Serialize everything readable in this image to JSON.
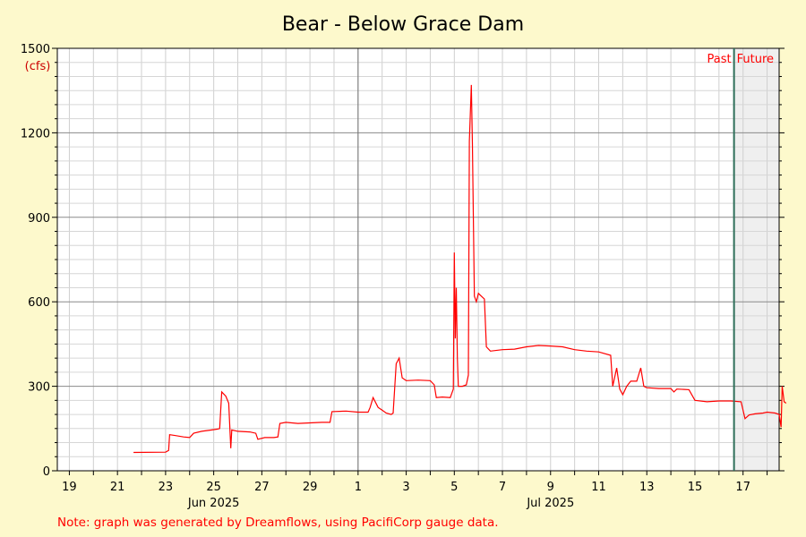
{
  "chart_data": {
    "type": "line",
    "title": "Bear - Below Grace Dam",
    "ylabel": "(cfs)",
    "ylim": [
      0,
      1500
    ],
    "xlim": [
      "2025-06-18T12:00",
      "2025-07-18T12:00"
    ],
    "yticks": [
      "0",
      "300",
      "600",
      "900",
      "1200",
      "1500"
    ],
    "xtick_labels": [
      {
        "date": "2025-06-19",
        "label": "19"
      },
      {
        "date": "2025-06-21",
        "label": "21"
      },
      {
        "date": "2025-06-23",
        "label": "23"
      },
      {
        "date": "2025-06-25",
        "label": "25"
      },
      {
        "date": "2025-06-27",
        "label": "27"
      },
      {
        "date": "2025-06-29",
        "label": "29"
      },
      {
        "date": "2025-07-01",
        "label": "1"
      },
      {
        "date": "2025-07-03",
        "label": "3"
      },
      {
        "date": "2025-07-05",
        "label": "5"
      },
      {
        "date": "2025-07-07",
        "label": "7"
      },
      {
        "date": "2025-07-09",
        "label": "9"
      },
      {
        "date": "2025-07-11",
        "label": "11"
      },
      {
        "date": "2025-07-13",
        "label": "13"
      },
      {
        "date": "2025-07-15",
        "label": "15"
      },
      {
        "date": "2025-07-17",
        "label": "17"
      }
    ],
    "month_labels": [
      {
        "date": "2025-06-25",
        "label": "Jun 2025"
      },
      {
        "date": "2025-07-09",
        "label": "Jul 2025"
      }
    ],
    "month_boundary": "2025-07-01",
    "now": "2025-07-16T15:00",
    "past_label": "Past",
    "future_label": "Future",
    "grid": true,
    "series": [
      {
        "color": "#ff0000",
        "points": [
          [
            "2025-06-21T16:00",
            65
          ],
          [
            "2025-06-23T00:00",
            66
          ],
          [
            "2025-06-23T03:00",
            72
          ],
          [
            "2025-06-23T04:00",
            128
          ],
          [
            "2025-06-23T10:00",
            125
          ],
          [
            "2025-06-23T18:00",
            120
          ],
          [
            "2025-06-24T00:00",
            118
          ],
          [
            "2025-06-24T04:00",
            133
          ],
          [
            "2025-06-24T12:00",
            140
          ],
          [
            "2025-06-24T22:00",
            145
          ],
          [
            "2025-06-25T04:00",
            148
          ],
          [
            "2025-06-25T06:00",
            150
          ],
          [
            "2025-06-25T08:00",
            280
          ],
          [
            "2025-06-25T12:00",
            265
          ],
          [
            "2025-06-25T15:00",
            240
          ],
          [
            "2025-06-25T17:00",
            80
          ],
          [
            "2025-06-25T18:00",
            145
          ],
          [
            "2025-06-26T00:00",
            140
          ],
          [
            "2025-06-26T12:00",
            138
          ],
          [
            "2025-06-26T18:00",
            133
          ],
          [
            "2025-06-26T20:00",
            112
          ],
          [
            "2025-06-27T03:00",
            118
          ],
          [
            "2025-06-27T12:00",
            118
          ],
          [
            "2025-06-27T16:00",
            120
          ],
          [
            "2025-06-27T18:00",
            168
          ],
          [
            "2025-06-28T00:00",
            172
          ],
          [
            "2025-06-28T12:00",
            168
          ],
          [
            "2025-06-29T00:00",
            170
          ],
          [
            "2025-06-29T12:00",
            172
          ],
          [
            "2025-06-29T20:00",
            172
          ],
          [
            "2025-06-29T22:00",
            210
          ],
          [
            "2025-06-30T12:00",
            212
          ],
          [
            "2025-07-01T00:00",
            208
          ],
          [
            "2025-07-01T10:00",
            208
          ],
          [
            "2025-07-01T12:00",
            225
          ],
          [
            "2025-07-01T15:00",
            260
          ],
          [
            "2025-07-01T20:00",
            225
          ],
          [
            "2025-07-02T00:00",
            215
          ],
          [
            "2025-07-02T04:00",
            205
          ],
          [
            "2025-07-02T09:00",
            200
          ],
          [
            "2025-07-02T11:00",
            205
          ],
          [
            "2025-07-02T14:00",
            380
          ],
          [
            "2025-07-02T17:00",
            400
          ],
          [
            "2025-07-02T20:00",
            330
          ],
          [
            "2025-07-03T00:00",
            320
          ],
          [
            "2025-07-03T12:00",
            322
          ],
          [
            "2025-07-04T00:00",
            320
          ],
          [
            "2025-07-04T04:00",
            305
          ],
          [
            "2025-07-04T06:00",
            260
          ],
          [
            "2025-07-04T12:00",
            262
          ],
          [
            "2025-07-04T20:00",
            260
          ],
          [
            "2025-07-04T23:00",
            290
          ],
          [
            "2025-07-05T00:00",
            775
          ],
          [
            "2025-07-05T01:00",
            470
          ],
          [
            "2025-07-05T02:00",
            650
          ],
          [
            "2025-07-05T03:00",
            400
          ],
          [
            "2025-07-05T04:00",
            300
          ],
          [
            "2025-07-05T08:00",
            300
          ],
          [
            "2025-07-05T12:00",
            305
          ],
          [
            "2025-07-05T14:00",
            340
          ],
          [
            "2025-07-05T15:00",
            1170
          ],
          [
            "2025-07-05T17:00",
            1370
          ],
          [
            "2025-07-05T18:00",
            1160
          ],
          [
            "2025-07-05T20:00",
            620
          ],
          [
            "2025-07-05T22:00",
            600
          ],
          [
            "2025-07-06T00:00",
            630
          ],
          [
            "2025-07-06T03:00",
            620
          ],
          [
            "2025-07-06T06:00",
            610
          ],
          [
            "2025-07-06T08:00",
            440
          ],
          [
            "2025-07-06T12:00",
            425
          ],
          [
            "2025-07-07T00:00",
            430
          ],
          [
            "2025-07-07T12:00",
            432
          ],
          [
            "2025-07-08T00:00",
            440
          ],
          [
            "2025-07-08T12:00",
            445
          ],
          [
            "2025-07-09T00:00",
            443
          ],
          [
            "2025-07-09T12:00",
            440
          ],
          [
            "2025-07-10T00:00",
            430
          ],
          [
            "2025-07-10T12:00",
            425
          ],
          [
            "2025-07-11T00:00",
            422
          ],
          [
            "2025-07-11T12:00",
            410
          ],
          [
            "2025-07-11T14:00",
            300
          ],
          [
            "2025-07-11T18:00",
            365
          ],
          [
            "2025-07-11T21:00",
            290
          ],
          [
            "2025-07-12T00:00",
            270
          ],
          [
            "2025-07-12T04:00",
            300
          ],
          [
            "2025-07-12T08:00",
            318
          ],
          [
            "2025-07-12T14:00",
            318
          ],
          [
            "2025-07-12T18:00",
            365
          ],
          [
            "2025-07-12T21:00",
            300
          ],
          [
            "2025-07-13T00:00",
            295
          ],
          [
            "2025-07-13T12:00",
            292
          ],
          [
            "2025-07-14T00:00",
            292
          ],
          [
            "2025-07-14T03:00",
            280
          ],
          [
            "2025-07-14T06:00",
            290
          ],
          [
            "2025-07-14T18:00",
            288
          ],
          [
            "2025-07-15T00:00",
            250
          ],
          [
            "2025-07-15T12:00",
            245
          ],
          [
            "2025-07-16T00:00",
            248
          ],
          [
            "2025-07-16T12:00",
            248
          ],
          [
            "2025-07-16T22:00",
            245
          ],
          [
            "2025-07-17T02:00",
            185
          ],
          [
            "2025-07-17T06:00",
            198
          ],
          [
            "2025-07-17T12:00",
            202
          ],
          [
            "2025-07-17T20:00",
            205
          ],
          [
            "2025-07-18T00:00",
            208
          ],
          [
            "2025-07-18T08:00",
            205
          ],
          [
            "2025-07-18T12:00",
            200
          ],
          [
            "2025-07-18T14:00",
            155
          ],
          [
            "2025-07-18T15:00",
            300
          ],
          [
            "2025-07-18T17:00",
            245
          ],
          [
            "2025-07-18T19:00",
            240
          ]
        ]
      }
    ],
    "note": "Note: graph was generated by Dreamflows, using PacifiCorp gauge data."
  },
  "colors": {
    "background": "#fdf9cc",
    "plot": "#ffffff",
    "future_shade": "#efefef",
    "grid": "#c8c8c8",
    "major_grid": "#808080",
    "now_line": "#2f6f5a",
    "series": "#ff0000",
    "note": "#ff0000"
  }
}
